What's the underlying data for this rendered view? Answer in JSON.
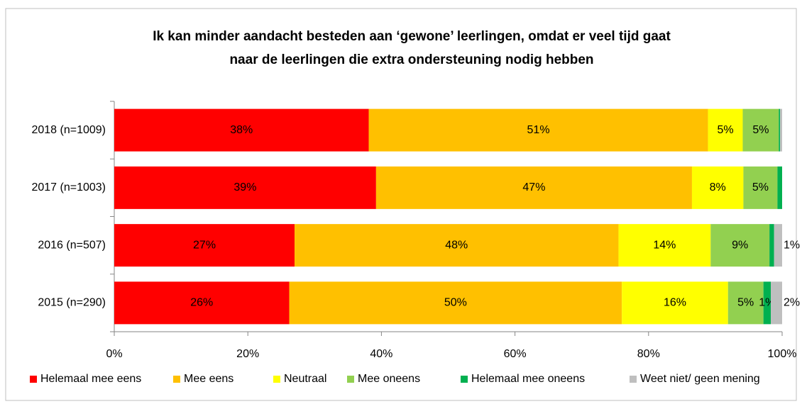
{
  "chart_data": {
    "type": "stacked-bar-horizontal",
    "title": [
      "Ik kan minder aandacht besteden aan ‘gewone’ leerlingen, omdat er veel tijd gaat",
      "naar de leerlingen die extra ondersteuning nodig hebben"
    ],
    "categories": [
      "2018 (n=1009)",
      "2017 (n=1003)",
      "2016 (n=507)",
      "2015 (n=290)"
    ],
    "series": [
      {
        "name": "Helemaal mee eens",
        "color": "#ff0000",
        "values": [
          38.1,
          39.2,
          27.0,
          26.2
        ],
        "value_labels": [
          "38%",
          "39%",
          "27%",
          "26%"
        ]
      },
      {
        "name": "Mee eens",
        "color": "#ffc000",
        "values": [
          50.8,
          47.3,
          48.5,
          49.8
        ],
        "value_labels": [
          "51%",
          "47%",
          "48%",
          "50%"
        ]
      },
      {
        "name": "Neutraal",
        "color": "#ffff00",
        "values": [
          5.2,
          7.7,
          13.8,
          15.9
        ],
        "value_labels": [
          "5%",
          "8%",
          "14%",
          "16%"
        ]
      },
      {
        "name": "Mee oneens",
        "color": "#92d050",
        "values": [
          5.4,
          5.1,
          8.8,
          5.3
        ],
        "value_labels": [
          "5%",
          "5%",
          "9%",
          "5%"
        ]
      },
      {
        "name": "Helemaal mee oneens",
        "color": "#00b050",
        "values": [
          0.2,
          0.7,
          0.7,
          1.1
        ],
        "value_labels": [
          null,
          null,
          null,
          "1%"
        ]
      },
      {
        "name": "Weet niet/ geen mening",
        "color": "#bfbfbf",
        "values": [
          0.3,
          0,
          1.2,
          1.7
        ],
        "value_labels": [
          null,
          null,
          "1%",
          "2%"
        ]
      }
    ],
    "xlim": [
      0,
      100
    ],
    "xticks": [
      {
        "value": 0,
        "label": "0%"
      },
      {
        "value": 20,
        "label": "20%"
      },
      {
        "value": 40,
        "label": "40%"
      },
      {
        "value": 60,
        "label": "60%"
      },
      {
        "value": 80,
        "label": "80%"
      },
      {
        "value": 100,
        "label": "100%"
      }
    ],
    "legend": "bottom"
  }
}
